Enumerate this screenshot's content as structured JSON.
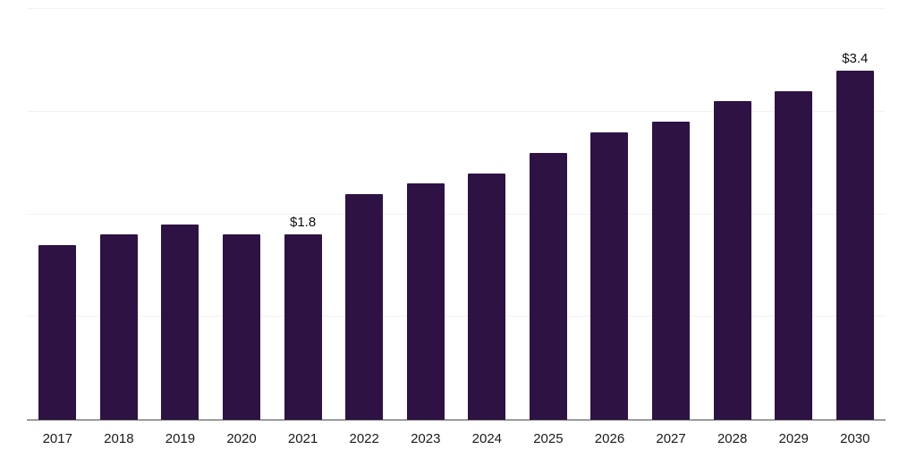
{
  "chart_data": {
    "type": "bar",
    "categories": [
      "2017",
      "2018",
      "2019",
      "2020",
      "2021",
      "2022",
      "2023",
      "2024",
      "2025",
      "2026",
      "2027",
      "2028",
      "2029",
      "2030"
    ],
    "values": [
      1.7,
      1.8,
      1.9,
      1.8,
      1.8,
      2.2,
      2.3,
      2.4,
      2.6,
      2.8,
      2.9,
      3.1,
      3.2,
      3.4
    ],
    "bar_labels": {
      "2021": "$1.8",
      "2030": "$3.4"
    },
    "title": "",
    "xlabel": "",
    "ylabel": "",
    "ylim": [
      0,
      4
    ],
    "gridline_values": [
      1,
      2,
      3,
      4
    ],
    "legend": "none",
    "grid": "horizontal-faint",
    "colors": {
      "bar": "#2e1244",
      "axis": "#4a4a4a",
      "gridline": "#f2f0f4",
      "value_label": "#0d0d0d",
      "tick_label": "#1a1a1a",
      "background": "#ffffff"
    }
  }
}
